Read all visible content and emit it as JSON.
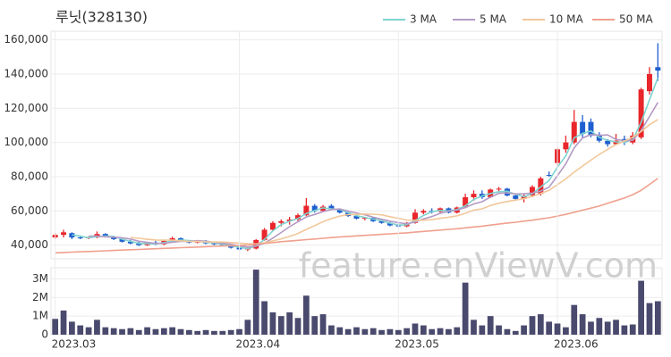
{
  "chart_data": [
    {
      "type": "candlestick",
      "title": "루닛(328130)",
      "watermark": "feature.enViewV.com",
      "categories": [
        "2023.03",
        null,
        null,
        null,
        null,
        null,
        null,
        null,
        null,
        null,
        null,
        null,
        null,
        null,
        null,
        null,
        null,
        null,
        null,
        null,
        null,
        null,
        "2023.04",
        null,
        null,
        null,
        null,
        null,
        null,
        null,
        null,
        null,
        null,
        null,
        null,
        null,
        null,
        null,
        null,
        null,
        null,
        "2023.05",
        null,
        null,
        null,
        null,
        null,
        null,
        null,
        null,
        null,
        null,
        null,
        null,
        null,
        null,
        null,
        null,
        null,
        null,
        "2023.06",
        null,
        null,
        null,
        null,
        null,
        null,
        null,
        null,
        null,
        null,
        null,
        null
      ],
      "open": [
        44500,
        46000,
        47000,
        44500,
        44000,
        44500,
        46500,
        45000,
        43500,
        42000,
        41000,
        40000,
        41500,
        40500,
        42500,
        44000,
        42500,
        41500,
        42500,
        41000,
        40500,
        40000,
        38500,
        37500,
        38000,
        43000,
        49000,
        53000,
        54000,
        55000,
        57500,
        63000,
        60000,
        63000,
        61000,
        59000,
        57000,
        55500,
        56000,
        54000,
        53000,
        51500,
        51000,
        53000,
        59000,
        60000,
        59500,
        61500,
        59000,
        62000,
        68000,
        70000,
        68000,
        72500,
        73000,
        69000,
        67000,
        69000,
        70000,
        81000,
        88000,
        96000,
        100000,
        112000,
        112000,
        104000,
        101000,
        99000,
        102000,
        100000,
        103000,
        130000,
        144000
      ],
      "high": [
        47000,
        49000,
        47500,
        45500,
        45000,
        48000,
        47000,
        45500,
        44000,
        43000,
        42000,
        42000,
        42500,
        43000,
        45000,
        44500,
        43000,
        43000,
        43000,
        41500,
        41500,
        40500,
        39000,
        38500,
        43500,
        50000,
        54000,
        55000,
        56500,
        58500,
        67500,
        64000,
        63500,
        64000,
        61500,
        59500,
        57500,
        56500,
        56500,
        54500,
        53500,
        52500,
        53500,
        61000,
        61000,
        61500,
        62000,
        62000,
        62500,
        70000,
        72000,
        72000,
        73000,
        74000,
        73500,
        70000,
        70000,
        75000,
        80000,
        83000,
        97000,
        104000,
        119000,
        116000,
        114000,
        106000,
        102000,
        105000,
        104000,
        106000,
        132000,
        144000,
        158000
      ],
      "low": [
        43500,
        44500,
        43500,
        43500,
        43500,
        44000,
        44500,
        43000,
        41500,
        40500,
        39500,
        39500,
        40000,
        40000,
        42000,
        42000,
        41000,
        41000,
        40500,
        40000,
        39500,
        38000,
        37000,
        36500,
        37500,
        42500,
        48000,
        51000,
        52000,
        54000,
        57000,
        59000,
        59500,
        60500,
        58500,
        56500,
        55000,
        54500,
        53500,
        52500,
        51000,
        50500,
        50500,
        52500,
        58000,
        58500,
        59000,
        58500,
        58500,
        61500,
        66000,
        67000,
        67500,
        71000,
        68500,
        66500,
        65000,
        68000,
        69000,
        80000,
        86000,
        94000,
        99000,
        103000,
        103000,
        100000,
        97500,
        98500,
        98500,
        99000,
        102000,
        128000,
        136000
      ],
      "close": [
        46000,
        47500,
        44500,
        44000,
        44500,
        46500,
        45000,
        43500,
        42000,
        41000,
        40000,
        41500,
        40500,
        42500,
        44000,
        42500,
        41500,
        42500,
        41000,
        40500,
        40000,
        38500,
        37500,
        38000,
        43000,
        49000,
        53000,
        54000,
        55000,
        57500,
        63000,
        60000,
        62500,
        61000,
        59000,
        57000,
        55500,
        56000,
        54000,
        53000,
        51500,
        51000,
        53000,
        59000,
        60000,
        59500,
        61500,
        59000,
        62000,
        68000,
        70000,
        68000,
        72500,
        73000,
        69000,
        67000,
        69000,
        74000,
        79000,
        80500,
        96000,
        100000,
        112000,
        105000,
        104000,
        101000,
        99000,
        101000,
        100000,
        104000,
        131000,
        140000,
        142000
      ],
      "up_color": "#e8262b",
      "down_color": "#1f5fcf",
      "series": [
        {
          "name": "3 MA",
          "color": "#7fd3d0",
          "values": [
            null,
            null,
            46000,
            45300,
            44300,
            45000,
            45300,
            45000,
            43500,
            42200,
            41000,
            40800,
            40700,
            41500,
            42300,
            43000,
            42700,
            42200,
            41700,
            41300,
            40500,
            39700,
            38700,
            38000,
            39500,
            43300,
            48300,
            52000,
            54000,
            55500,
            58500,
            60200,
            61800,
            61200,
            60800,
            59000,
            57200,
            56200,
            55200,
            54300,
            52800,
            51800,
            51800,
            54300,
            57300,
            59500,
            60300,
            60000,
            60800,
            63000,
            66700,
            68700,
            70200,
            71200,
            71500,
            69700,
            68300,
            70000,
            74000,
            77800,
            85500,
            92200,
            102700,
            105300,
            106700,
            103000,
            101300,
            100300,
            100000,
            101700,
            111700,
            125000,
            137700
          ]
        },
        {
          "name": "5 MA",
          "color": "#b49ac4",
          "values": [
            null,
            null,
            null,
            null,
            45300,
            45300,
            44900,
            44700,
            44300,
            43600,
            42300,
            41600,
            41000,
            41100,
            41700,
            42200,
            42200,
            42600,
            42300,
            41600,
            41100,
            40500,
            39500,
            38900,
            39400,
            41200,
            44100,
            47400,
            50800,
            53700,
            56500,
            57900,
            59600,
            60800,
            61100,
            59900,
            58800,
            57700,
            56300,
            55100,
            54000,
            53100,
            52500,
            53500,
            55300,
            56700,
            58600,
            59800,
            60400,
            62000,
            64100,
            65400,
            68100,
            70300,
            70500,
            69900,
            70000,
            70400,
            71600,
            73900,
            80500,
            87500,
            96900,
            102600,
            104600,
            104200,
            104400,
            101800,
            101000,
            101300,
            107000,
            115200,
            123400
          ]
        },
        {
          "name": "10 MA",
          "color": "#f2c79a",
          "values": [
            null,
            null,
            null,
            null,
            null,
            null,
            null,
            null,
            null,
            44500,
            44000,
            43400,
            43000,
            42900,
            42900,
            42500,
            42200,
            42100,
            41900,
            41800,
            41800,
            41500,
            41200,
            40800,
            40700,
            41400,
            42500,
            43700,
            45100,
            46800,
            49200,
            51400,
            53700,
            55500,
            57000,
            57800,
            58000,
            58200,
            58100,
            57700,
            56600,
            55700,
            54700,
            54500,
            54600,
            54900,
            55700,
            56300,
            57100,
            58600,
            60500,
            61200,
            63200,
            64500,
            65500,
            66300,
            67100,
            68500,
            70200,
            72000,
            75300,
            78700,
            82700,
            86200,
            89700,
            93000,
            96000,
            98700,
            100800,
            103100,
            106400,
            110400,
            113400
          ]
        },
        {
          "name": "50 MA",
          "color": "#f0a08e",
          "values": [
            35500,
            35700,
            35900,
            36100,
            36300,
            36500,
            36700,
            36900,
            37100,
            37300,
            37500,
            37700,
            37900,
            38100,
            38300,
            38500,
            38700,
            38900,
            39100,
            39300,
            39500,
            39600,
            39800,
            40100,
            40500,
            41000,
            41500,
            42000,
            42400,
            42800,
            43200,
            43600,
            44000,
            44400,
            44800,
            45100,
            45400,
            45700,
            46000,
            46300,
            46600,
            46900,
            47200,
            47600,
            48000,
            48400,
            48800,
            49200,
            49600,
            50100,
            50600,
            51100,
            51700,
            52300,
            52900,
            53400,
            54000,
            54600,
            55300,
            56000,
            57000,
            58000,
            59200,
            60400,
            61600,
            62800,
            64500,
            66000,
            67500,
            69500,
            72000,
            75500,
            79000
          ]
        }
      ],
      "ylim": [
        32000,
        165000
      ],
      "yticks": [
        {
          "value": 40000,
          "label": "40,000"
        },
        {
          "value": 60000,
          "label": "60,000"
        },
        {
          "value": 80000,
          "label": "80,000"
        },
        {
          "value": 100000,
          "label": "100,000"
        },
        {
          "value": 120000,
          "label": "120,000"
        },
        {
          "value": 140000,
          "label": "140,000"
        },
        {
          "value": 160000,
          "label": "160,000"
        }
      ],
      "grid": true
    },
    {
      "type": "bar",
      "color": "#4a4a6e",
      "values": [
        850000,
        1300000,
        700000,
        500000,
        400000,
        800000,
        400000,
        350000,
        300000,
        350000,
        250000,
        400000,
        300000,
        350000,
        400000,
        300000,
        250000,
        200000,
        250000,
        200000,
        200000,
        250000,
        300000,
        800000,
        3500000,
        1800000,
        1200000,
        1000000,
        1200000,
        900000,
        2100000,
        1000000,
        1100000,
        500000,
        400000,
        300000,
        400000,
        300000,
        350000,
        250000,
        300000,
        250000,
        350000,
        600000,
        500000,
        300000,
        350000,
        300000,
        400000,
        2800000,
        800000,
        500000,
        1000000,
        500000,
        300000,
        200000,
        500000,
        1000000,
        1100000,
        700000,
        600000,
        400000,
        1600000,
        1100000,
        700000,
        900000,
        700000,
        800000,
        500000,
        550000,
        2900000,
        1700000,
        1800000
      ],
      "ylim": [
        0,
        3600000
      ],
      "yticks": [
        0,
        {
          "value": 1000000,
          "label": "1M"
        },
        {
          "value": 2000000,
          "label": "2M"
        },
        {
          "value": 3000000,
          "label": "3M"
        }
      ],
      "grid": true
    }
  ]
}
